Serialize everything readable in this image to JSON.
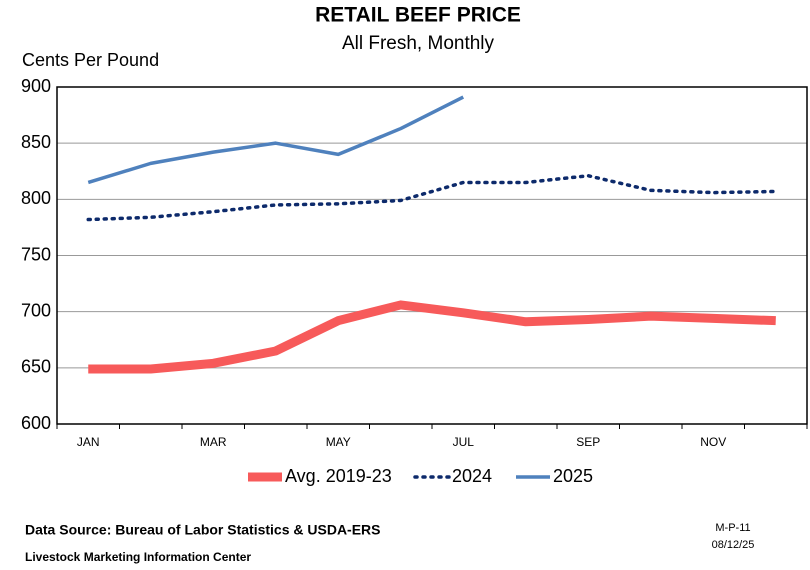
{
  "chart_data": {
    "type": "line",
    "title": "RETAIL BEEF PRICE",
    "subtitle": "All Fresh, Monthly",
    "y_label": "Cents Per Pound",
    "source": "Data Source: Bureau of Labor Statistics & USDA-ERS",
    "footer": "Livestock Marketing Information Center",
    "code": "M-P-11",
    "date": "08/12/25",
    "categories": [
      "JAN",
      null,
      "MAR",
      null,
      "MAY",
      null,
      "JUL",
      null,
      "SEP",
      null,
      "NOV",
      null
    ],
    "series": [
      {
        "name": "Avg. 2019-23",
        "color": "#f75a5a",
        "style": "thick",
        "values": [
          649,
          649,
          654,
          665,
          692,
          706,
          699,
          691,
          693,
          696,
          694,
          692
        ]
      },
      {
        "name": "2024",
        "color": "#0d2a6b",
        "style": "dotted",
        "values": [
          782,
          784,
          789,
          795,
          796,
          799,
          815,
          815,
          821,
          808,
          806,
          807
        ]
      },
      {
        "name": "2025",
        "color": "#4f81bd",
        "style": "solid",
        "values": [
          815,
          832,
          842,
          850,
          840,
          863,
          891,
          null,
          null,
          null,
          null,
          null
        ]
      }
    ],
    "ylim": [
      600,
      900
    ],
    "yticks": [
      600,
      650,
      700,
      750,
      800,
      850,
      900
    ],
    "grid": true,
    "legend": "bottom"
  }
}
